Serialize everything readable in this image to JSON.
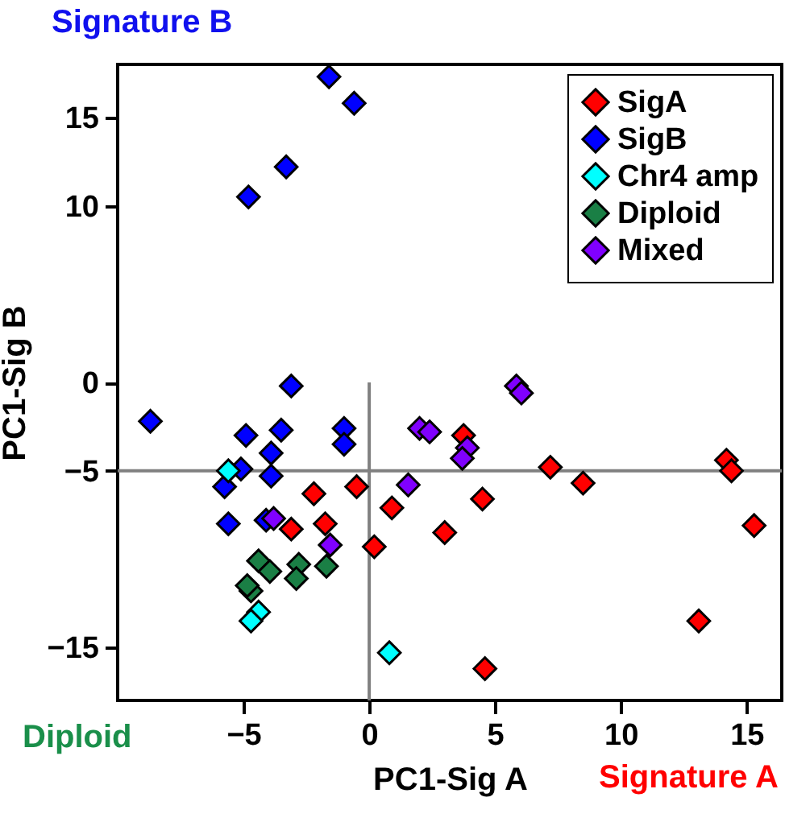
{
  "chart_data": {
    "type": "scatter",
    "xlabel": "PC1-Sig A",
    "ylabel": "PC1-Sig B",
    "annotations": [
      "Signature B",
      "Diploid",
      "Signature A"
    ],
    "xlim": [
      -10,
      16.4
    ],
    "xticks": [
      -5,
      0,
      5,
      10,
      15
    ],
    "ylim": [
      -18,
      18
    ],
    "yticks": [
      -15,
      -5,
      0,
      10,
      15
    ],
    "marker": "diamond",
    "grid": false,
    "legend": "top right",
    "ref_lines": [
      {
        "axis": "x",
        "value": 0,
        "color": "#808080"
      },
      {
        "axis": "y",
        "value": -5,
        "color": "#808080"
      }
    ],
    "series": [
      {
        "name": "SigA",
        "color": "#ff0000",
        "x": [
          3.75,
          7.2,
          8.5,
          14.2,
          14.4,
          15.3,
          13.1,
          4.6,
          4.5,
          3.0,
          0.9,
          0.2,
          -0.5,
          -2.2,
          -3.1,
          -1.75
        ],
        "values": [
          -3.0,
          -4.8,
          -5.7,
          -4.4,
          -5.0,
          -8.1,
          -13.5,
          -16.2,
          -6.6,
          -8.5,
          -7.1,
          -9.3,
          -5.9,
          -6.3,
          -8.3,
          -8.0
        ]
      },
      {
        "name": "SigB",
        "color": "#0000ff",
        "x": [
          -1.6,
          -0.6,
          -3.3,
          -4.8,
          -3.1,
          -8.7,
          -4.9,
          -3.5,
          -1.0,
          -1.0,
          -3.9,
          -5.1,
          -3.9,
          -5.75,
          -5.6,
          -4.1
        ],
        "values": [
          17.3,
          15.8,
          12.2,
          10.5,
          -0.2,
          -2.2,
          -3.0,
          -2.7,
          -2.6,
          -3.5,
          -4.0,
          -4.9,
          -5.3,
          -5.9,
          -8.0,
          -7.8
        ]
      },
      {
        "name": "Chr4 amp",
        "color": "#00ffff",
        "x": [
          -5.6,
          -4.4,
          -4.7,
          0.8
        ],
        "values": [
          -5.0,
          -13.0,
          -13.5,
          -15.3
        ]
      },
      {
        "name": "Diploid",
        "color": "#1a7f45",
        "x": [
          -4.4,
          -3.95,
          -4.7,
          -4.85,
          -2.8,
          -2.9,
          -1.7
        ],
        "values": [
          -10.1,
          -10.7,
          -11.8,
          -11.5,
          -10.3,
          -11.1,
          -10.4
        ]
      },
      {
        "name": "Mixed",
        "color": "#8000ff",
        "x": [
          5.85,
          6.05,
          2.0,
          2.4,
          3.9,
          3.7,
          1.55,
          -3.8,
          -1.55
        ],
        "values": [
          -0.2,
          -0.6,
          -2.6,
          -2.8,
          -3.7,
          -4.3,
          -5.8,
          -7.7,
          -9.2
        ]
      }
    ]
  }
}
